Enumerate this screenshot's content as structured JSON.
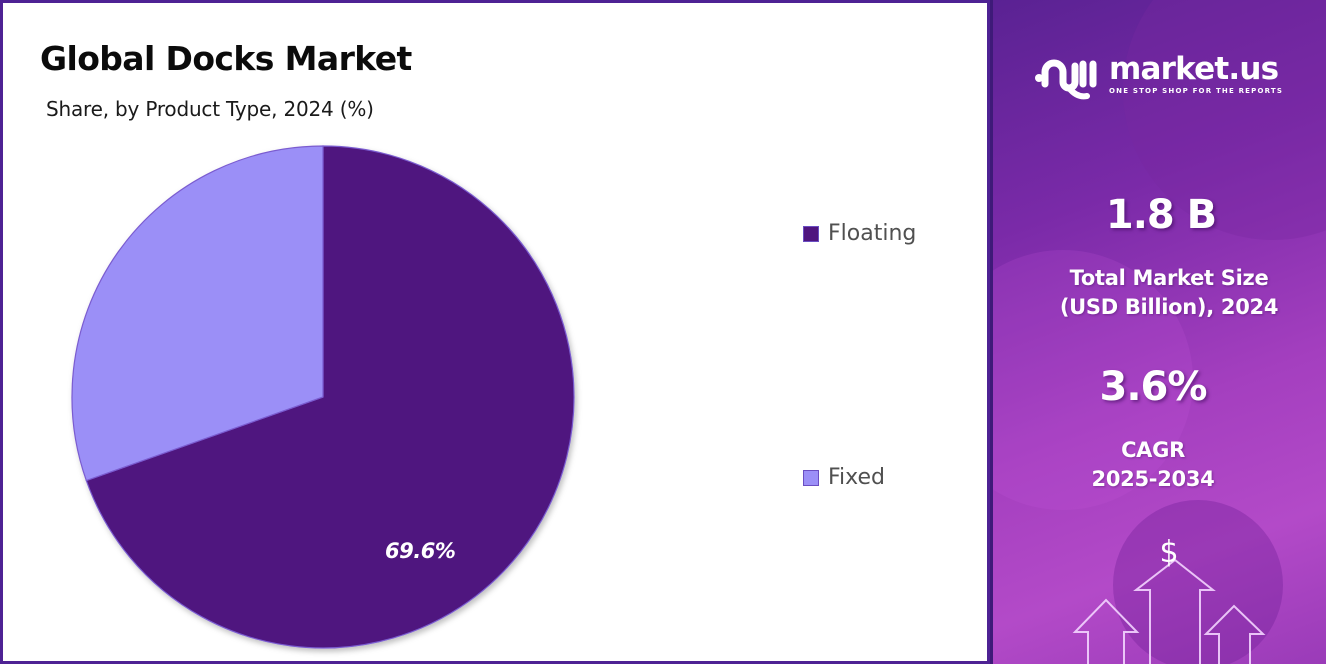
{
  "title": "Global Docks Market",
  "subtitle": "Share, by Product Type, 2024 (%)",
  "chart_data": {
    "type": "pie",
    "title": "Global Docks Market",
    "subtitle": "Share, by Product Type, 2024 (%)",
    "categories": [
      "Floating",
      "Fixed"
    ],
    "values": [
      69.6,
      30.4
    ],
    "colors": [
      "#4f157f",
      "#9b8ff7"
    ],
    "data_labels": [
      "69.6%",
      ""
    ],
    "start_angle_deg": 0,
    "direction": "clockwise",
    "legend_position": "right"
  },
  "pie": {
    "label_floating": "69.6%"
  },
  "legend": {
    "items": [
      {
        "label": "Floating",
        "color": "#4f157f"
      },
      {
        "label": "Fixed",
        "color": "#9b8ff7"
      }
    ]
  },
  "sidebar": {
    "brand": "market.us",
    "tagline": "ONE STOP SHOP FOR THE REPORTS",
    "market_size_value": "1.8 B",
    "market_size_label_1": "Total Market Size",
    "market_size_label_2": "(USD Billion), 2024",
    "cagr_value": "3.6%",
    "cagr_label_1": "CAGR",
    "cagr_label_2": "2025-2034",
    "currency_symbol": "$"
  }
}
